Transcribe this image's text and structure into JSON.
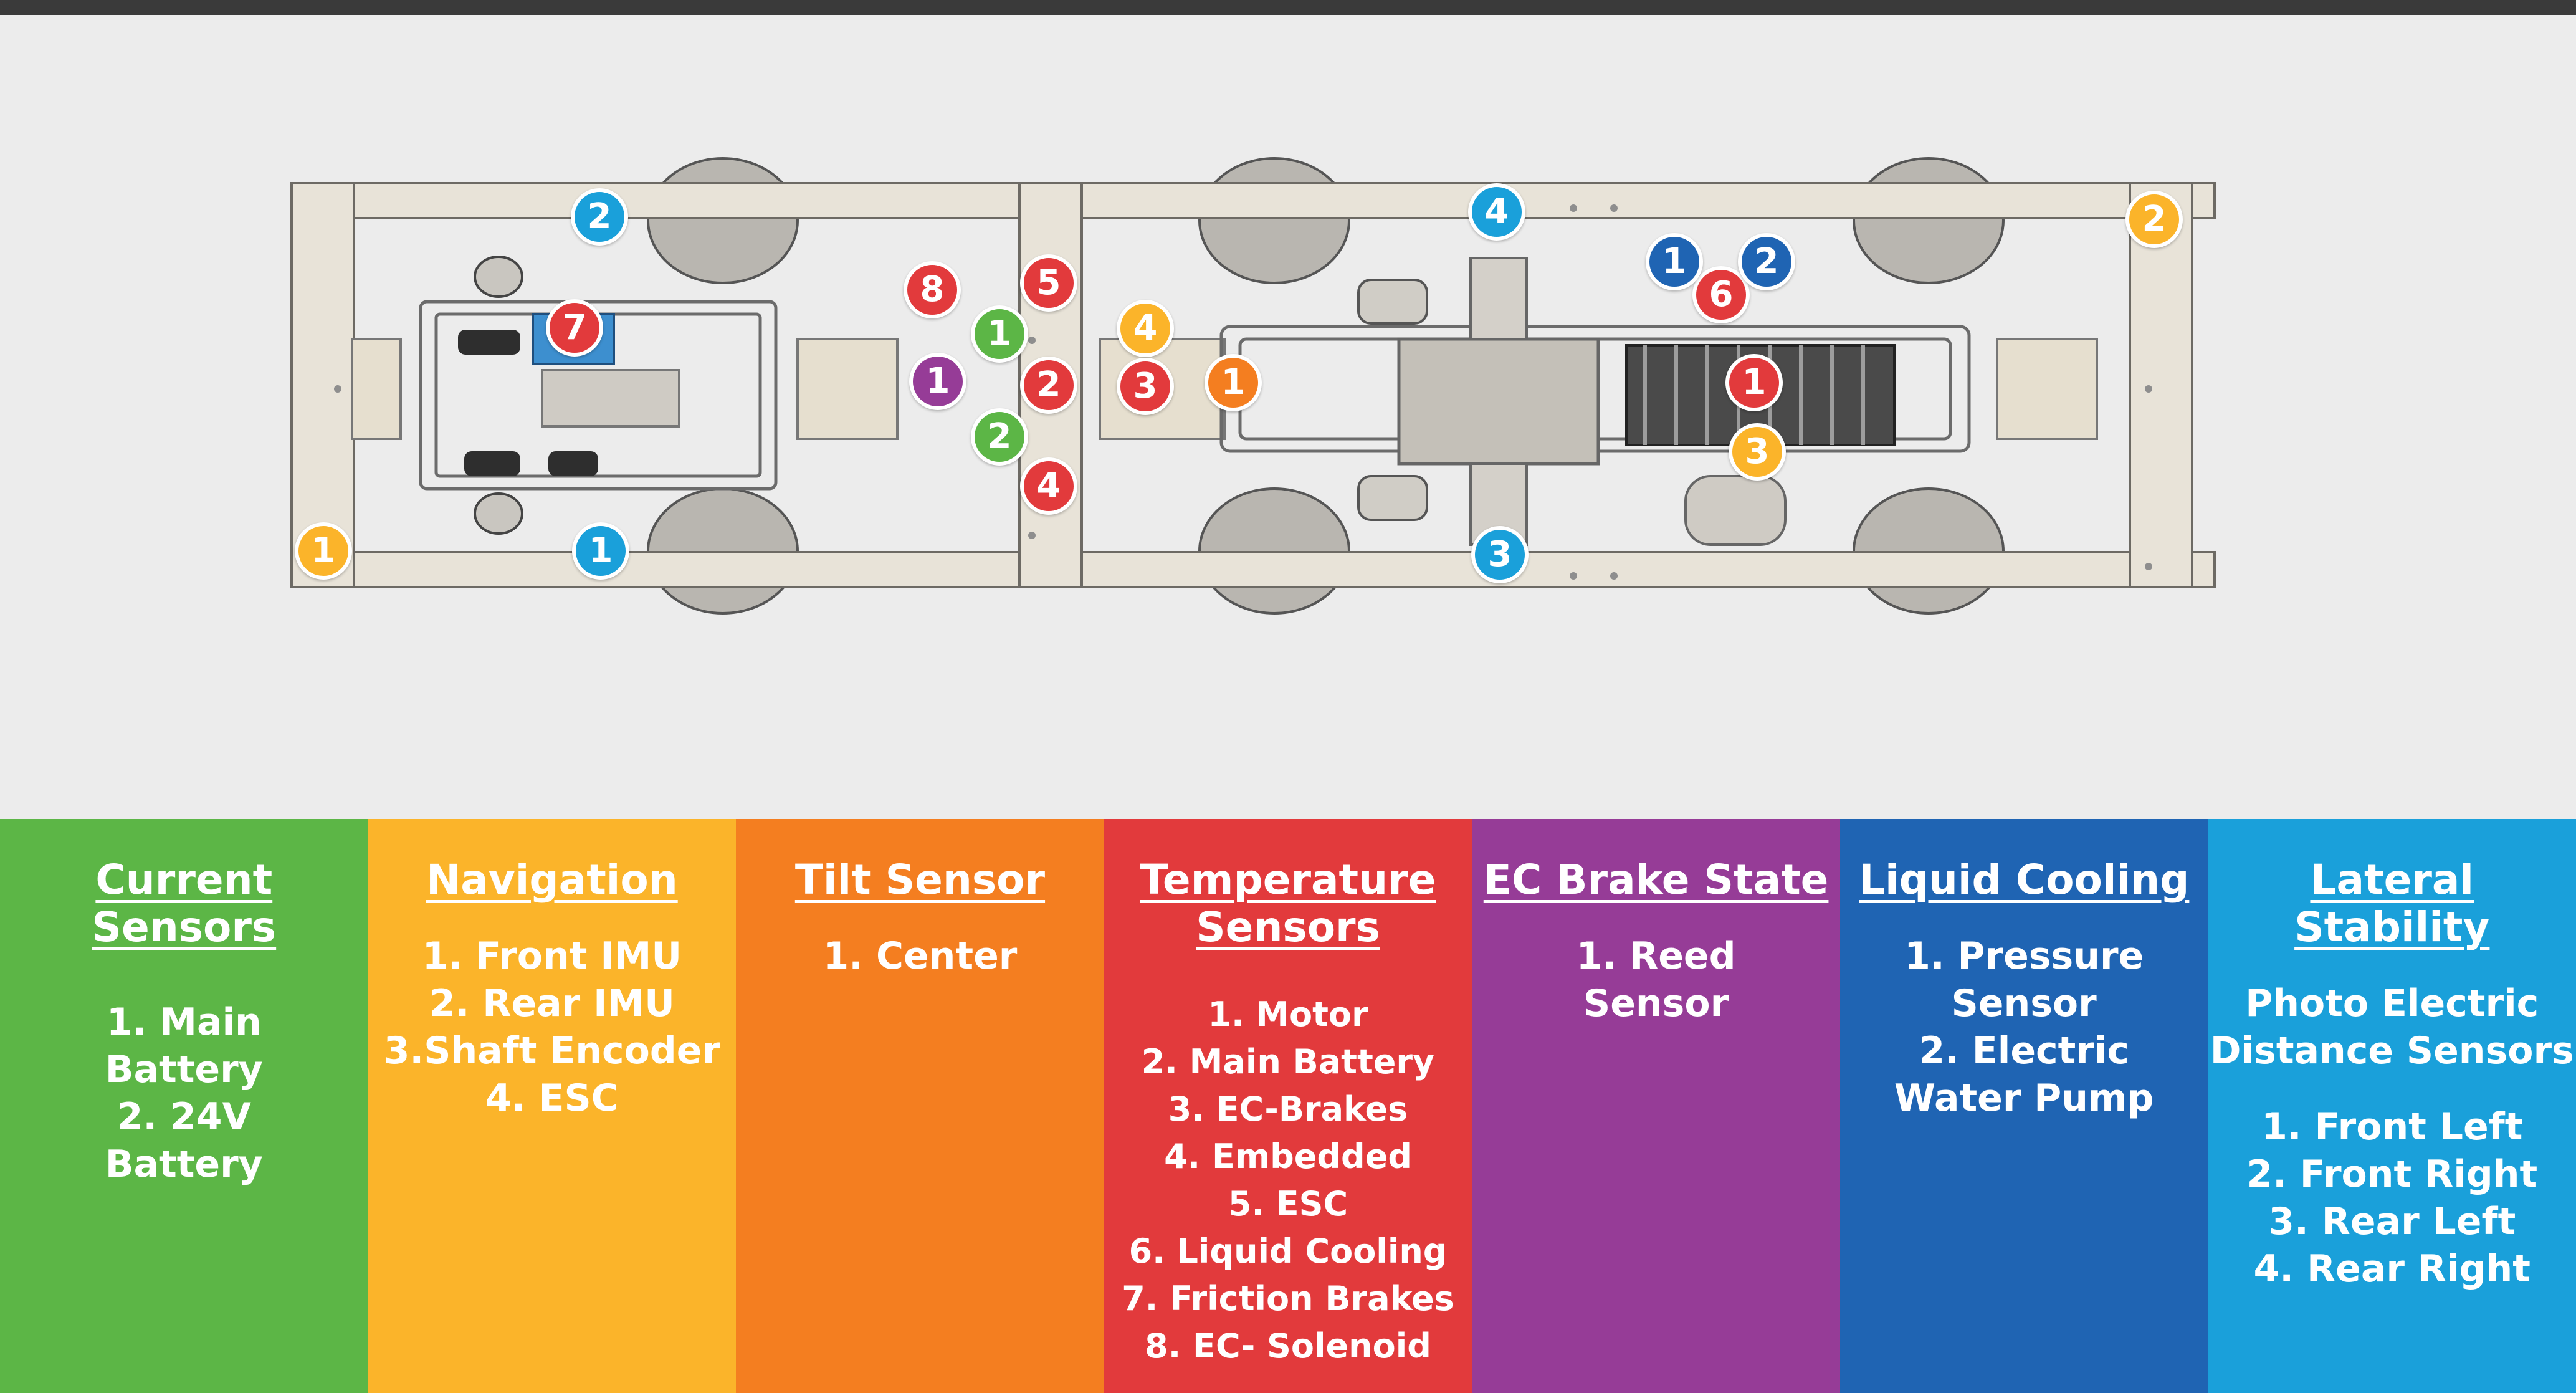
{
  "colors": {
    "current_sensors": "#5cb646",
    "navigation": "#fbb42a",
    "tilt_sensor": "#f47e20",
    "temperature_sensors": "#e23a3c",
    "ec_brake_state": "#963c97",
    "liquid_cooling": "#1f64b3",
    "lateral_stability": "#1aa0da"
  },
  "markers": {
    "current_front": "1",
    "current_rear": "2",
    "nav_front_imu": "1",
    "nav_rear_imu": "2",
    "nav_shaft_encoder": "3",
    "nav_esc": "4",
    "tilt_center": "1",
    "temp_motor": "1",
    "temp_main_battery": "2",
    "temp_ec_brakes": "3",
    "temp_embedded": "4",
    "temp_esc": "5",
    "temp_liquid_cooling": "6",
    "temp_friction_brakes": "7",
    "temp_ec_solenoid": "8",
    "brake_reed": "1",
    "cooling_pressure": "1",
    "cooling_pump": "2",
    "lateral_front_left": "1",
    "lateral_front_right": "2",
    "lateral_rear_left": "3",
    "lateral_rear_right": "4"
  },
  "legend": {
    "current_sensors": {
      "title": "Current Sensors",
      "items": "1. Main\nBattery\n2. 24V\nBattery"
    },
    "navigation": {
      "title": "Navigation",
      "items": "1. Front IMU\n2. Rear IMU\n3.Shaft Encoder\n4. ESC"
    },
    "tilt_sensor": {
      "title": "Tilt Sensor",
      "items": "1. Center"
    },
    "temperature_sensors": {
      "title": "Temperature Sensors",
      "items": "1. Motor\n2. Main Battery\n3. EC-Brakes\n4. Embedded\n5. ESC\n6. Liquid Cooling\n7. Friction Brakes\n8. EC- Solenoid"
    },
    "ec_brake_state": {
      "title": "EC Brake State",
      "items": "1. Reed\nSensor"
    },
    "liquid_cooling": {
      "title": "Liquid Cooling",
      "items": "1. Pressure\nSensor\n2. Electric\nWater Pump"
    },
    "lateral_stability": {
      "title": "Lateral Stability",
      "subtitle": "Photo Electric\nDistance Sensors",
      "items": "1. Front Left\n2. Front Right\n3. Rear Left\n4. Rear Right"
    }
  }
}
